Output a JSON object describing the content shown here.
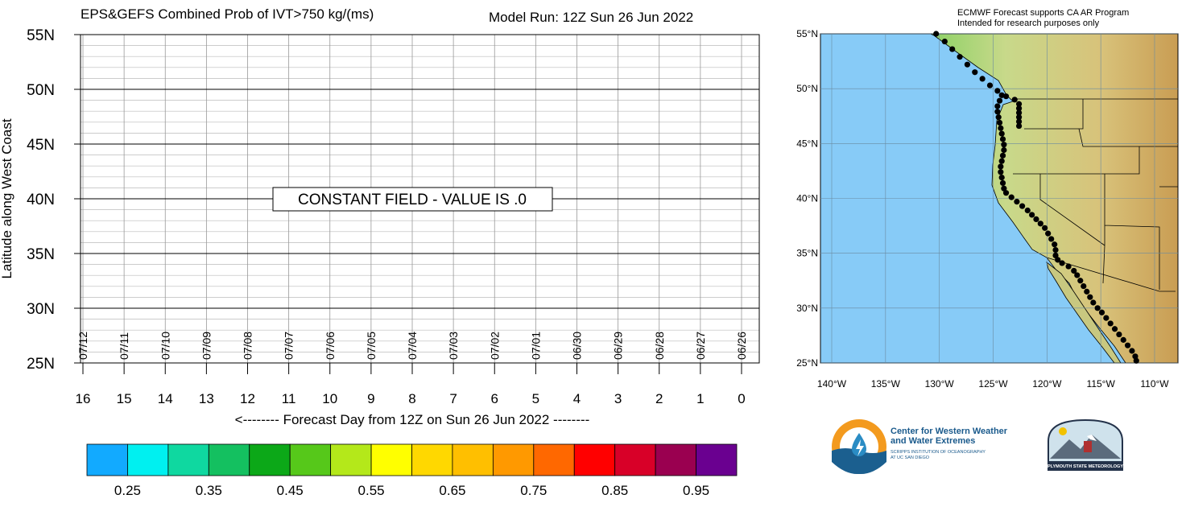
{
  "chart_data": [
    {
      "type": "heatmap",
      "title": "EPS&GEFS Combined Prob of IVT>750 kg/(ms)",
      "subtitle": "Model Run: 12Z Sun 26 Jun 2022",
      "xlabel": "<-------- Forecast Day from 12Z on Sun 26 Jun 2022 --------",
      "ylabel": "Latitude along West Coast",
      "x_ticks": [
        "16",
        "15",
        "14",
        "13",
        "12",
        "11",
        "10",
        "9",
        "8",
        "7",
        "6",
        "5",
        "4",
        "3",
        "2",
        "1",
        "0"
      ],
      "x_values": [
        16,
        15,
        14,
        13,
        12,
        11,
        10,
        9,
        8,
        7,
        6,
        5,
        4,
        3,
        2,
        1,
        0
      ],
      "date_ticks": [
        "07/12",
        "07/11",
        "07/10",
        "07/09",
        "07/08",
        "07/07",
        "07/06",
        "07/05",
        "07/04",
        "07/03",
        "07/02",
        "07/01",
        "06/30",
        "06/29",
        "06/28",
        "06/27",
        "06/26"
      ],
      "y_ticks": [
        "55N",
        "50N",
        "45N",
        "40N",
        "35N",
        "30N",
        "25N"
      ],
      "y_values": [
        55,
        50,
        45,
        40,
        35,
        30,
        25
      ],
      "xlim": [
        16,
        0
      ],
      "ylim": [
        25,
        55
      ],
      "grid": true,
      "annotation": "CONSTANT FIELD - VALUE IS .0",
      "field_value": 0.0
    },
    {
      "type": "colorbar",
      "labels": [
        "0.25",
        "0.35",
        "0.45",
        "0.55",
        "0.65",
        "0.75",
        "0.85",
        "0.95"
      ],
      "colors": [
        "#12aaff",
        "#00f0f0",
        "#0fd8a0",
        "#14c060",
        "#0ca818",
        "#56c81a",
        "#b4e81a",
        "#ffff00",
        "#ffd800",
        "#ffbf00",
        "#ff9900",
        "#ff6800",
        "#ff0000",
        "#d80028",
        "#9a0050",
        "#6a0090"
      ]
    }
  ],
  "map": {
    "note_line1": "ECMWF Forecast supports CA AR Program",
    "note_line2": "Intended for research purposes only",
    "lat_labels": [
      "55°N",
      "50°N",
      "45°N",
      "40°N",
      "35°N",
      "30°N",
      "25°N"
    ],
    "lon_labels": [
      "140°W",
      "135°W",
      "130°W",
      "125°W",
      "120°W",
      "115°W",
      "110°W"
    ],
    "ocean_color": "#87cbf7",
    "point_color": "#000000"
  },
  "logos": {
    "cw3e_line1": "Center for Western Weather",
    "cw3e_line2": "and Water Extremes",
    "cw3e_sub1": "SCRIPPS INSTITUTION OF OCEANOGRAPHY",
    "cw3e_sub2": "AT UC SAN DIEGO",
    "psu_text": "PLYMOUTH STATE METEOROLOGY"
  }
}
